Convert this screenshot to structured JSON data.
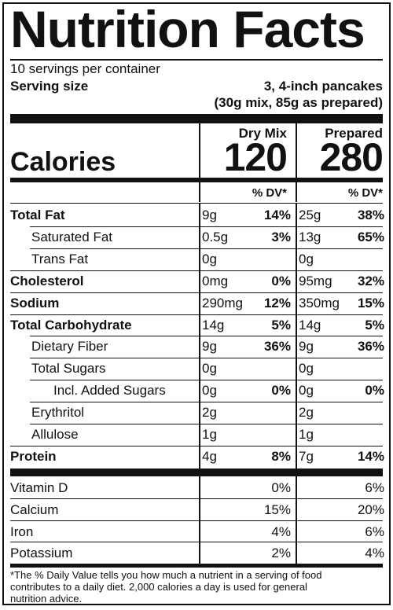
{
  "title": "Nutrition Facts",
  "servings_per_container": "10 servings per container",
  "serving_size_label": "Serving size",
  "serving_size_line1": "3, 4-inch pancakes",
  "serving_size_line2": "(30g mix, 85g as prepared)",
  "calories_label": "Calories",
  "columns": [
    {
      "header": "Dry Mix",
      "calories": "120",
      "dv_header": "% DV*"
    },
    {
      "header": "Prepared",
      "calories": "280",
      "dv_header": "% DV*"
    }
  ],
  "nutrients": [
    {
      "name": "Total Fat",
      "bold": true,
      "indent": 0,
      "dry_amt": "9g",
      "dry_dv": "14%",
      "prep_amt": "25g",
      "prep_dv": "38%"
    },
    {
      "name": "Saturated Fat",
      "bold": false,
      "indent": 1,
      "dry_amt": "0.5g",
      "dry_dv": "3%",
      "prep_amt": "13g",
      "prep_dv": "65%"
    },
    {
      "name": "Trans Fat",
      "bold": false,
      "indent": 1,
      "dry_amt": "0g",
      "dry_dv": "",
      "prep_amt": "0g",
      "prep_dv": ""
    },
    {
      "name": "Cholesterol",
      "bold": true,
      "indent": 0,
      "dry_amt": "0mg",
      "dry_dv": "0%",
      "prep_amt": "95mg",
      "prep_dv": "32%"
    },
    {
      "name": "Sodium",
      "bold": true,
      "indent": 0,
      "dry_amt": "290mg",
      "dry_dv": "12%",
      "prep_amt": "350mg",
      "prep_dv": "15%"
    },
    {
      "name": "Total Carbohydrate",
      "bold": true,
      "indent": 0,
      "dry_amt": "14g",
      "dry_dv": "5%",
      "prep_amt": "14g",
      "prep_dv": "5%"
    },
    {
      "name": "Dietary Fiber",
      "bold": false,
      "indent": 1,
      "dry_amt": "9g",
      "dry_dv": "36%",
      "prep_amt": "9g",
      "prep_dv": "36%"
    },
    {
      "name": "Total Sugars",
      "bold": false,
      "indent": 1,
      "dry_amt": "0g",
      "dry_dv": "",
      "prep_amt": "0g",
      "prep_dv": ""
    },
    {
      "name": "Incl. Added Sugars",
      "bold": false,
      "indent": 2,
      "dry_amt": "0g",
      "dry_dv": "0%",
      "prep_amt": "0g",
      "prep_dv": "0%"
    },
    {
      "name": "Erythritol",
      "bold": false,
      "indent": 1,
      "dry_amt": "2g",
      "dry_dv": "",
      "prep_amt": "2g",
      "prep_dv": ""
    },
    {
      "name": "Allulose",
      "bold": false,
      "indent": 1,
      "dry_amt": "1g",
      "dry_dv": "",
      "prep_amt": "1g",
      "prep_dv": ""
    },
    {
      "name": "Protein",
      "bold": true,
      "indent": 0,
      "dry_amt": "4g",
      "dry_dv": "8%",
      "prep_amt": "7g",
      "prep_dv": "14%"
    }
  ],
  "vitamins": [
    {
      "name": "Vitamin D",
      "dry_dv": "0%",
      "prep_dv": "6%"
    },
    {
      "name": "Calcium",
      "dry_dv": "15%",
      "prep_dv": "20%"
    },
    {
      "name": "Iron",
      "dry_dv": "4%",
      "prep_dv": "6%"
    },
    {
      "name": "Potassium",
      "dry_dv": "2%",
      "prep_dv": "4%"
    }
  ],
  "footnote_line1": "*The % Daily Value tells you how much a nutrient in a serving of food",
  "footnote_line2": "contributes to a daily diet. 2,000 calories a day is used for general",
  "footnote_line3": "nutrition advice."
}
